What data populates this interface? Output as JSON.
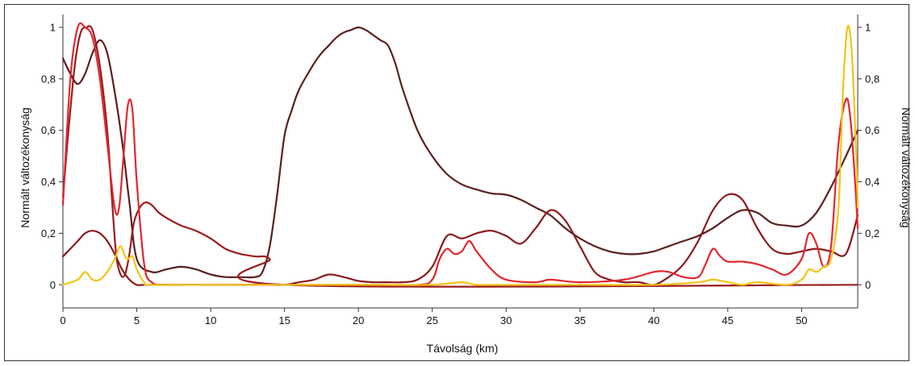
{
  "chart_data": {
    "type": "line",
    "title": "",
    "xlabel": "Távolság (km)",
    "ylabel_left": "Normált változékonyság",
    "ylabel_right": "Normált változékonyság",
    "xlim": [
      0,
      53.8
    ],
    "ylim": [
      -0.09,
      1.05
    ],
    "x_ticks": [
      0,
      5,
      10,
      15,
      20,
      25,
      30,
      35,
      40,
      45,
      50
    ],
    "x_tick_labels": [
      "0",
      "5",
      "10",
      "15",
      "20",
      "25",
      "30",
      "35",
      "40",
      "45",
      "50"
    ],
    "y_ticks": [
      0,
      0.2,
      0.4,
      0.6,
      0.8,
      1
    ],
    "y_tick_labels": [
      "0",
      "0,2",
      "0,4",
      "0,6",
      "0,8",
      "1"
    ],
    "grid": false,
    "series": [
      {
        "color": "#5c1f1f",
        "x": [
          0,
          0.5,
          1,
          1.5,
          2,
          2.5,
          3,
          3.5,
          4,
          4.5,
          5,
          6,
          7,
          8,
          9,
          10,
          11,
          12,
          13,
          13.5,
          14,
          14.5,
          15,
          15.5,
          16,
          17,
          17.5,
          18,
          18.5,
          19,
          19.5,
          20,
          20.5,
          21,
          21.5,
          22,
          22.5,
          23,
          24,
          25,
          26,
          27,
          28,
          29,
          30,
          31,
          32,
          33,
          34,
          35,
          36,
          37,
          38,
          39,
          40,
          41,
          42,
          43,
          44,
          45,
          46,
          47,
          48,
          49,
          50,
          51,
          52,
          53,
          53.8
        ],
        "values": [
          0.88,
          0.82,
          0.78,
          0.82,
          0.9,
          0.95,
          0.9,
          0.75,
          0.56,
          0.32,
          0.1,
          0.05,
          0.06,
          0.07,
          0.06,
          0.04,
          0.03,
          0.03,
          0.03,
          0.05,
          0.15,
          0.35,
          0.58,
          0.68,
          0.76,
          0.86,
          0.9,
          0.93,
          0.96,
          0.98,
          0.99,
          1.0,
          0.99,
          0.97,
          0.95,
          0.93,
          0.86,
          0.76,
          0.6,
          0.5,
          0.43,
          0.39,
          0.37,
          0.355,
          0.35,
          0.33,
          0.3,
          0.27,
          0.22,
          0.18,
          0.15,
          0.13,
          0.12,
          0.12,
          0.13,
          0.15,
          0.17,
          0.19,
          0.22,
          0.26,
          0.29,
          0.28,
          0.24,
          0.23,
          0.23,
          0.28,
          0.38,
          0.5,
          0.6
        ]
      },
      {
        "color": "#8b1a1a",
        "x": [
          0,
          0.5,
          1,
          1.5,
          2,
          2.5,
          3,
          3.5,
          4,
          4.5,
          5,
          5.5,
          6,
          7,
          8,
          9,
          10,
          11,
          12,
          13,
          14,
          15,
          16,
          17,
          18,
          19,
          20,
          21,
          22,
          23,
          24,
          25,
          26,
          27,
          28,
          29,
          30,
          31,
          32,
          33,
          34,
          35,
          36,
          37,
          38,
          39,
          40,
          41,
          42,
          43,
          44,
          45,
          46,
          47,
          48,
          49,
          50,
          51,
          52,
          53,
          53.8
        ],
        "values": [
          0.11,
          0.14,
          0.17,
          0.2,
          0.21,
          0.2,
          0.17,
          0.12,
          0.06,
          0.02,
          0.0,
          0.0,
          0.0,
          0.0,
          0.0,
          0.0,
          0.0,
          0.0,
          0.0,
          0.0,
          0.0,
          0.0,
          0.01,
          0.02,
          0.04,
          0.03,
          0.015,
          0.01,
          0.01,
          0.01,
          0.02,
          0.07,
          0.19,
          0.18,
          0.2,
          0.21,
          0.19,
          0.16,
          0.22,
          0.29,
          0.25,
          0.15,
          0.05,
          0.02,
          0.01,
          0.01,
          0.0,
          0.03,
          0.08,
          0.17,
          0.29,
          0.35,
          0.33,
          0.22,
          0.14,
          0.12,
          0.13,
          0.14,
          0.13,
          0.12,
          0.27
        ]
      },
      {
        "color": "#9a1c1c",
        "x": [
          0,
          0.3,
          0.8,
          1.2,
          1.6,
          2,
          2.5,
          3,
          3.3,
          3.6,
          3.9,
          4.2,
          4.5,
          4.8,
          5.2,
          5.6,
          6,
          6.5,
          7,
          8,
          9,
          10,
          11,
          12,
          13,
          14,
          15,
          53.8
        ],
        "values": [
          0.34,
          0.55,
          0.85,
          0.98,
          1.0,
          0.99,
          0.85,
          0.6,
          0.35,
          0.12,
          0.04,
          0.04,
          0.12,
          0.24,
          0.3,
          0.32,
          0.31,
          0.28,
          0.26,
          0.23,
          0.21,
          0.18,
          0.14,
          0.12,
          0.11,
          0.1,
          0.0,
          0.0
        ]
      },
      {
        "color": "#e3272f",
        "x": [
          0,
          0.5,
          1,
          1.5,
          2,
          2.5,
          3,
          3.5,
          3.8,
          4.1,
          4.4,
          4.7,
          5,
          5.5,
          6,
          7,
          10,
          15,
          20,
          24,
          25,
          25.5,
          26,
          26.5,
          27,
          27.5,
          28,
          29,
          30,
          32,
          33,
          35,
          38,
          40,
          41,
          42,
          43,
          43.5,
          44,
          44.5,
          45,
          46,
          47,
          48,
          49,
          50,
          50.5,
          51,
          51.5,
          52,
          52.5,
          53,
          53.3,
          53.6,
          53.8
        ],
        "values": [
          0.31,
          0.8,
          1.0,
          1.0,
          0.96,
          0.8,
          0.55,
          0.3,
          0.3,
          0.5,
          0.7,
          0.68,
          0.4,
          0.08,
          0.01,
          0.0,
          0.0,
          0.0,
          0.0,
          0.0,
          0.02,
          0.1,
          0.14,
          0.12,
          0.13,
          0.17,
          0.13,
          0.06,
          0.02,
          0.01,
          0.02,
          0.01,
          0.02,
          0.05,
          0.05,
          0.03,
          0.03,
          0.08,
          0.14,
          0.11,
          0.09,
          0.09,
          0.08,
          0.06,
          0.04,
          0.1,
          0.2,
          0.16,
          0.07,
          0.15,
          0.55,
          0.72,
          0.65,
          0.42,
          0.22
        ]
      },
      {
        "color": "#f2c418",
        "x": [
          0,
          1,
          1.5,
          2,
          2.5,
          3,
          3.5,
          3.9,
          4.3,
          4.7,
          5,
          5.5,
          6,
          10,
          15,
          20,
          25,
          27,
          28,
          30,
          35,
          40,
          43,
          44,
          45,
          46,
          47,
          49,
          50,
          50.5,
          51,
          51.5,
          52,
          52.5,
          52.8,
          53.1,
          53.4,
          53.7,
          53.8
        ],
        "values": [
          0.0,
          0.02,
          0.05,
          0.02,
          0.02,
          0.05,
          0.1,
          0.15,
          0.1,
          0.11,
          0.06,
          0.01,
          0.0,
          0.0,
          0.0,
          0.0,
          0.0,
          0.01,
          0.0,
          0.0,
          0.0,
          0.0,
          0.01,
          0.02,
          0.01,
          0.0,
          0.01,
          0.0,
          0.02,
          0.06,
          0.05,
          0.07,
          0.1,
          0.3,
          0.75,
          1.0,
          0.9,
          0.5,
          0.3
        ]
      }
    ]
  }
}
